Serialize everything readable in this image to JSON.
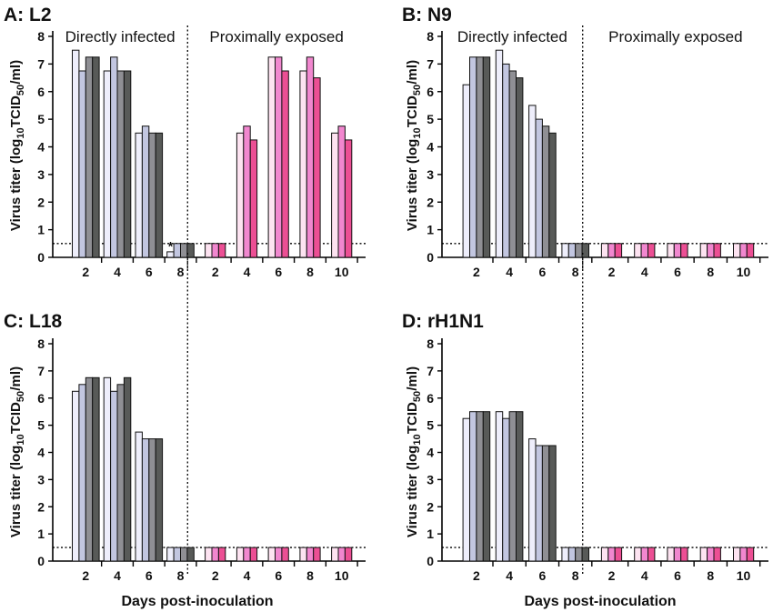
{
  "figure": {
    "xlabel": "Days post-inoculation",
    "detection_limit": 0.5,
    "colors": {
      "direct": [
        "#eeeefb",
        "#c2c6e0",
        "#8f8f94",
        "#585a58"
      ],
      "proximal": [
        "#fde3f1",
        "#f187cf",
        "#ec4f94"
      ]
    }
  },
  "chart_data": [
    {
      "type": "bar",
      "title": "A: L2",
      "ylabel": "Virus titer (log10 TCID50/ml)",
      "ylim": [
        0,
        8
      ],
      "yticks": [
        0,
        1,
        2,
        3,
        4,
        5,
        6,
        7,
        8
      ],
      "groups": [
        {
          "label": "Directly infected",
          "categories": [
            "2",
            "4",
            "6",
            "8"
          ],
          "values": [
            [
              7.5,
              6.75,
              7.25,
              7.25
            ],
            [
              6.75,
              7.25,
              6.75,
              6.75
            ],
            [
              4.5,
              4.75,
              4.5,
              4.5
            ],
            [
              0.2,
              0.5,
              0.5,
              0.5
            ]
          ],
          "annotations": [
            {
              "category": "8",
              "text": "*"
            }
          ]
        },
        {
          "label": "Proximally exposed",
          "categories": [
            "2",
            "4",
            "6",
            "8",
            "10"
          ],
          "values": [
            [
              0.5,
              0.5,
              0.5
            ],
            [
              4.5,
              4.75,
              4.25
            ],
            [
              7.25,
              7.25,
              6.75
            ],
            [
              6.75,
              7.25,
              6.5
            ],
            [
              4.5,
              4.75,
              4.25
            ]
          ]
        }
      ]
    },
    {
      "type": "bar",
      "title": "B: N9",
      "ylabel": "Virus titer (log10 TCID50/ml)",
      "ylim": [
        0,
        8
      ],
      "yticks": [
        0,
        1,
        2,
        3,
        4,
        5,
        6,
        7,
        8
      ],
      "groups": [
        {
          "label": "Directly infected",
          "categories": [
            "2",
            "4",
            "6",
            "8"
          ],
          "values": [
            [
              6.25,
              7.25,
              7.25,
              7.25
            ],
            [
              7.5,
              7.0,
              6.75,
              6.5
            ],
            [
              5.5,
              5.0,
              4.75,
              4.5
            ],
            [
              0.5,
              0.5,
              0.5,
              0.5
            ]
          ]
        },
        {
          "label": "Proximally exposed",
          "categories": [
            "2",
            "4",
            "6",
            "8",
            "10"
          ],
          "values": [
            [
              0.5,
              0.5,
              0.5
            ],
            [
              0.5,
              0.5,
              0.5
            ],
            [
              0.5,
              0.5,
              0.5
            ],
            [
              0.5,
              0.5,
              0.5
            ],
            [
              0.5,
              0.5,
              0.5
            ]
          ]
        }
      ]
    },
    {
      "type": "bar",
      "title": "C: L18",
      "ylabel": "Virus titer (log10 TCID50/ml)",
      "ylim": [
        0,
        8
      ],
      "yticks": [
        0,
        1,
        2,
        3,
        4,
        5,
        6,
        7,
        8
      ],
      "groups": [
        {
          "label": "",
          "categories": [
            "2",
            "4",
            "6",
            "8"
          ],
          "values": [
            [
              6.25,
              6.5,
              6.75,
              6.75
            ],
            [
              6.75,
              6.25,
              6.5,
              6.75
            ],
            [
              4.75,
              4.5,
              4.5,
              4.5
            ],
            [
              0.5,
              0.5,
              0.5,
              0.5
            ]
          ]
        },
        {
          "label": "",
          "categories": [
            "2",
            "4",
            "6",
            "8",
            "10"
          ],
          "values": [
            [
              0.5,
              0.5,
              0.5
            ],
            [
              0.5,
              0.5,
              0.5
            ],
            [
              0.5,
              0.5,
              0.5
            ],
            [
              0.5,
              0.5,
              0.5
            ],
            [
              0.5,
              0.5,
              0.5
            ]
          ]
        }
      ]
    },
    {
      "type": "bar",
      "title": "D: rH1N1",
      "ylabel": "Virus titer (log10 TCID50/ml)",
      "ylim": [
        0,
        8
      ],
      "yticks": [
        0,
        1,
        2,
        3,
        4,
        5,
        6,
        7,
        8
      ],
      "groups": [
        {
          "label": "",
          "categories": [
            "2",
            "4",
            "6",
            "8"
          ],
          "values": [
            [
              5.25,
              5.5,
              5.5,
              5.5
            ],
            [
              5.5,
              5.25,
              5.5,
              5.5
            ],
            [
              4.5,
              4.25,
              4.25,
              4.25
            ],
            [
              0.5,
              0.5,
              0.5,
              0.5
            ]
          ]
        },
        {
          "label": "",
          "categories": [
            "2",
            "4",
            "6",
            "8",
            "10"
          ],
          "values": [
            [
              0.5,
              0.5,
              0.5
            ],
            [
              0.5,
              0.5,
              0.5
            ],
            [
              0.5,
              0.5,
              0.5
            ],
            [
              0.5,
              0.5,
              0.5
            ],
            [
              0.5,
              0.5,
              0.5
            ]
          ]
        }
      ]
    }
  ]
}
